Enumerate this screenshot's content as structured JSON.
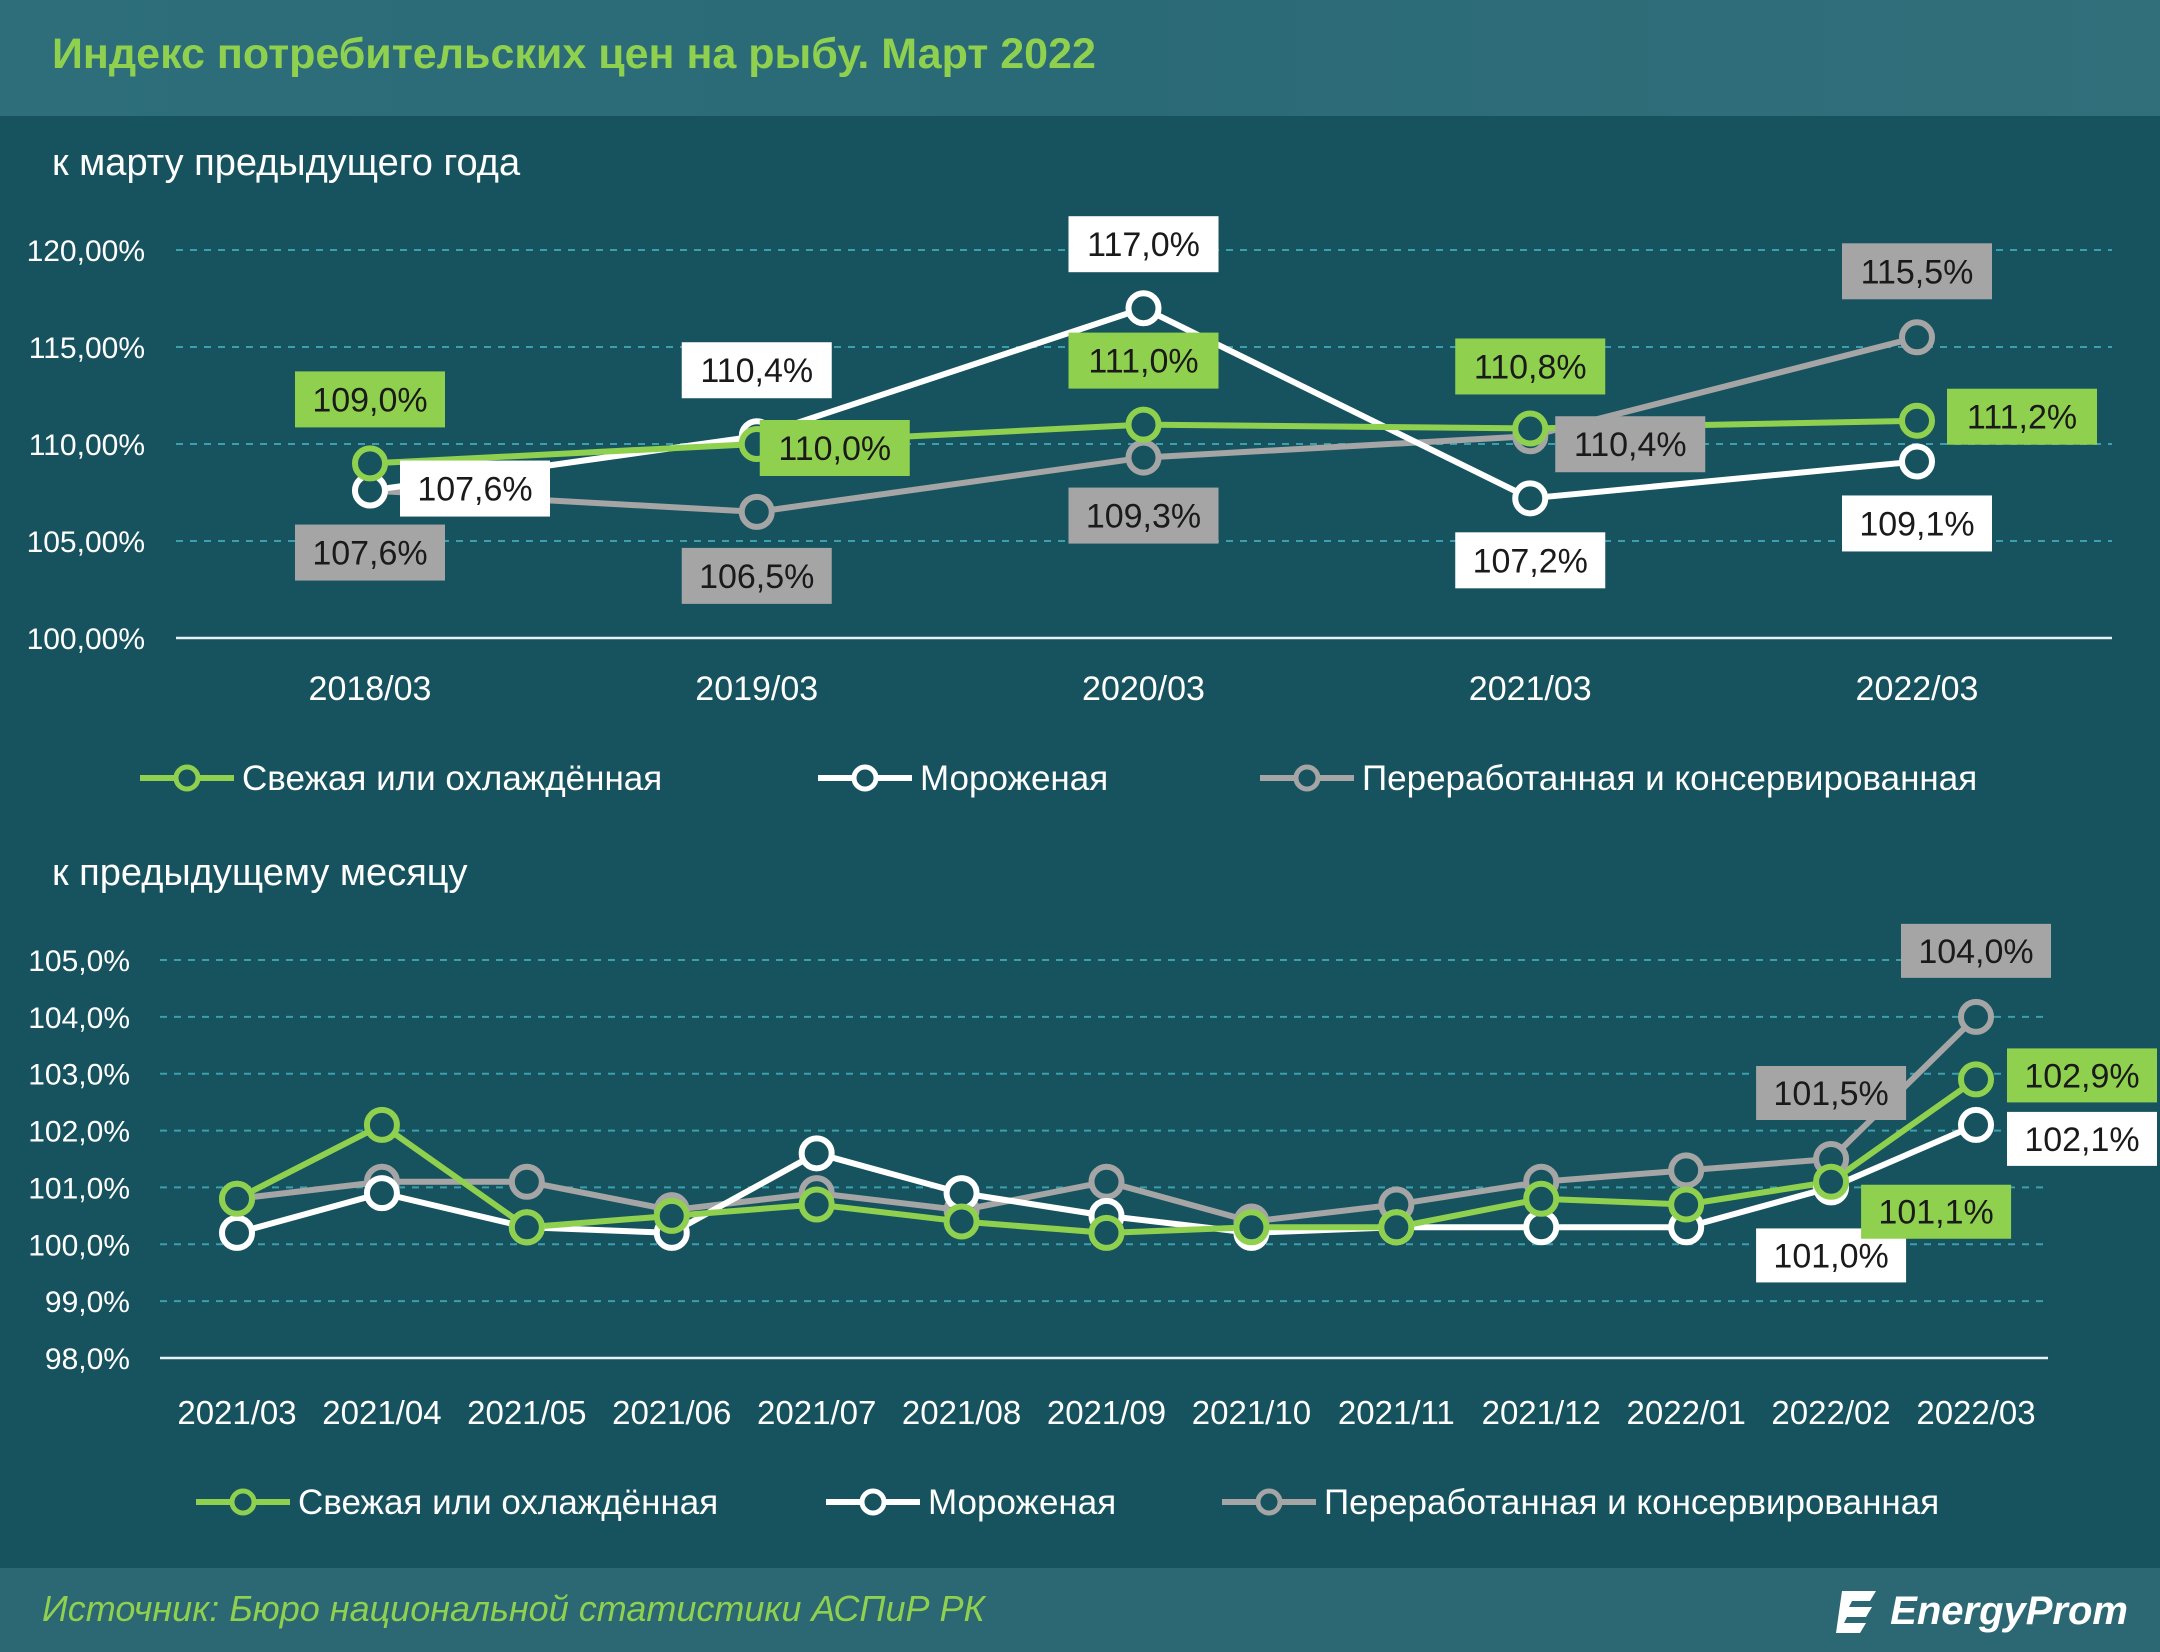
{
  "header": {
    "title": "Индекс потребительских цен на рыбу. Март 2022"
  },
  "colors": {
    "fresh": "#8fd14f",
    "frozen": "#ffffff",
    "processed": "#a5a5a5",
    "background": "#17535f"
  },
  "chart_data": [
    {
      "type": "line",
      "title": "к марту предыдущего года",
      "categories": [
        "2018/03",
        "2019/03",
        "2020/03",
        "2021/03",
        "2022/03"
      ],
      "y_ticks": [
        "100,00%",
        "105,00%",
        "110,00%",
        "115,00%",
        "120,00%"
      ],
      "ylim": [
        100,
        120
      ],
      "grid": true,
      "legend_position": "bottom",
      "series": [
        {
          "name": "Свежая или охлаждённая",
          "color": "#8fd14f",
          "values": [
            109.0,
            110.0,
            111.0,
            110.8,
            111.2
          ],
          "labels": [
            "109,0%",
            "110,0%",
            "111,0%",
            "110,8%",
            "111,2%"
          ]
        },
        {
          "name": "Мороженая",
          "color": "#ffffff",
          "values": [
            107.6,
            110.4,
            117.0,
            107.2,
            109.1
          ],
          "labels": [
            "107,6%",
            "110,4%",
            "117,0%",
            "107,2%",
            "109,1%"
          ]
        },
        {
          "name": "Переработанная и консервированная",
          "color": "#a5a5a5",
          "values": [
            107.6,
            106.5,
            109.3,
            110.4,
            115.5
          ],
          "labels": [
            "107,6%",
            "106,5%",
            "109,3%",
            "110,4%",
            "115,5%"
          ]
        }
      ]
    },
    {
      "type": "line",
      "title": "к предыдущему месяцу",
      "categories": [
        "2021/03",
        "2021/04",
        "2021/05",
        "2021/06",
        "2021/07",
        "2021/08",
        "2021/09",
        "2021/10",
        "2021/11",
        "2021/12",
        "2022/01",
        "2022/02",
        "2022/03"
      ],
      "y_ticks": [
        "98,0%",
        "99,0%",
        "100,0%",
        "101,0%",
        "102,0%",
        "103,0%",
        "104,0%",
        "105,0%"
      ],
      "ylim": [
        98,
        105
      ],
      "grid": true,
      "legend_position": "bottom",
      "series": [
        {
          "name": "Свежая или охлаждённая",
          "color": "#8fd14f",
          "values": [
            100.8,
            102.1,
            100.3,
            100.5,
            100.7,
            100.4,
            100.2,
            100.3,
            100.3,
            100.8,
            100.7,
            101.1,
            102.9
          ],
          "labels": [
            "",
            "",
            "",
            "",
            "",
            "",
            "",
            "",
            "",
            "",
            "",
            "101,1%",
            "102,9%"
          ]
        },
        {
          "name": "Мороженая",
          "color": "#ffffff",
          "values": [
            100.2,
            100.9,
            100.3,
            100.2,
            101.6,
            100.9,
            100.5,
            100.2,
            100.3,
            100.3,
            100.3,
            101.0,
            102.1
          ],
          "labels": [
            "",
            "",
            "",
            "",
            "",
            "",
            "",
            "",
            "",
            "",
            "",
            "101,0%",
            "102,1%"
          ]
        },
        {
          "name": "Переработанная и консервированная",
          "color": "#a5a5a5",
          "values": [
            100.8,
            101.1,
            101.1,
            100.6,
            100.9,
            100.6,
            101.1,
            100.4,
            100.7,
            101.1,
            101.3,
            101.5,
            104.0
          ],
          "labels": [
            "",
            "",
            "",
            "",
            "",
            "",
            "",
            "",
            "",
            "",
            "",
            "101,5%",
            "104,0%"
          ]
        }
      ]
    }
  ],
  "footer": {
    "source": "Источник: Бюро национальной статистики АСПиР РК",
    "logo_text": "EnergyProm"
  }
}
